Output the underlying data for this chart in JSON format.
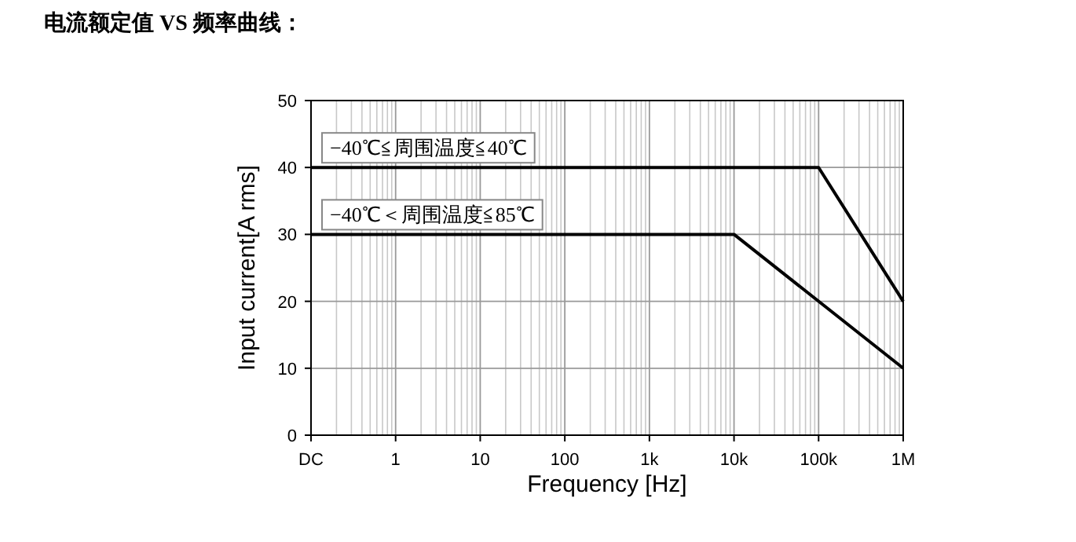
{
  "chart_data": {
    "type": "line",
    "title": "电流额定值 VS 频率曲线：",
    "xlabel": "Frequency [Hz]",
    "ylabel": "Input current[A rms]",
    "xlim": [
      0.1,
      1000000
    ],
    "ylim": [
      0,
      50
    ],
    "xticks": [
      {
        "value": 0.1,
        "label": "DC"
      },
      1,
      10,
      100,
      {
        "value": 1000,
        "label": "1k"
      },
      {
        "value": 10000,
        "label": "10k"
      },
      {
        "value": 100000,
        "label": "100k"
      },
      {
        "value": 1000000,
        "label": "1M"
      }
    ],
    "yticks": [
      0,
      10,
      20,
      30,
      40,
      50
    ],
    "log": "x",
    "grid": true,
    "line_style": "solid",
    "series": [
      {
        "name": "−40℃≦周围温度≦40℃",
        "color": "#000000",
        "x": [
          0.1,
          100000,
          1000000
        ],
        "values": [
          40,
          40,
          20
        ]
      },
      {
        "name": "−40℃＜周围温度≦85℃",
        "color": "#000000",
        "x": [
          0.1,
          10000,
          1000000
        ],
        "values": [
          30,
          30,
          10
        ]
      }
    ]
  }
}
